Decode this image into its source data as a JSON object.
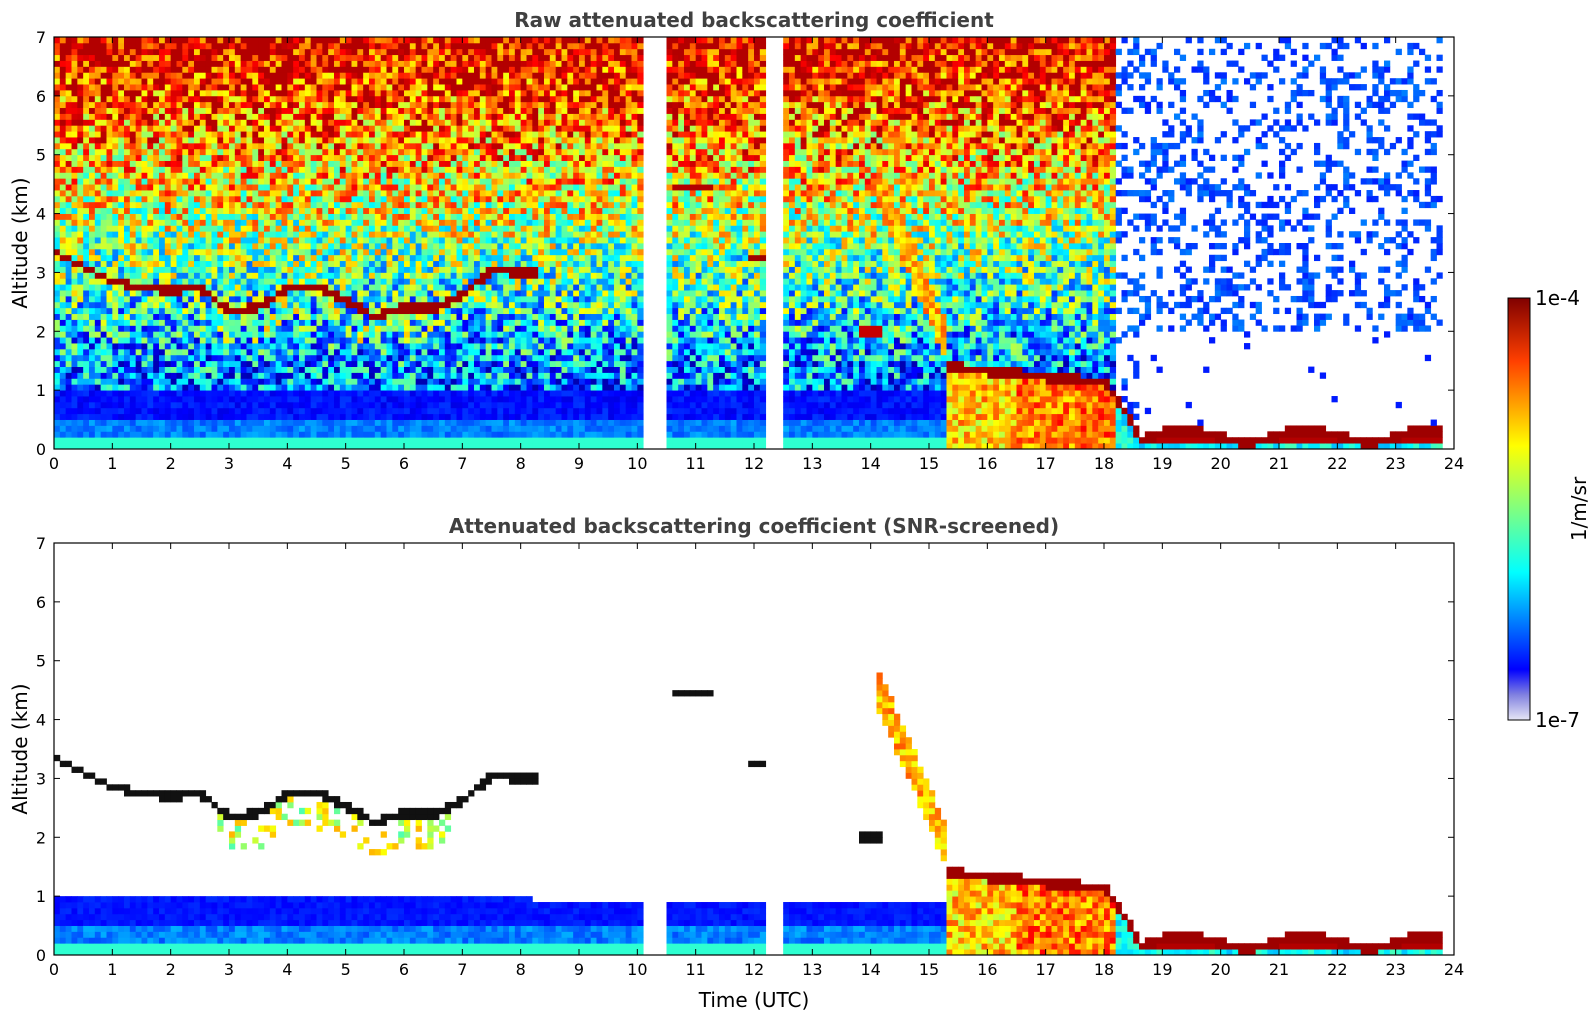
{
  "chart_data": [
    {
      "type": "heatmap",
      "title": "Raw attenuated backscattering coefficient",
      "xlabel": "",
      "ylabel": "Altitude (km)",
      "xlim": [
        0,
        24
      ],
      "ylim": [
        0,
        7
      ],
      "xticks": [
        0,
        1,
        2,
        3,
        4,
        5,
        6,
        7,
        8,
        9,
        10,
        11,
        12,
        13,
        14,
        15,
        16,
        17,
        18,
        19,
        20,
        21,
        22,
        23,
        24
      ],
      "yticks": [
        0,
        1,
        2,
        3,
        4,
        5,
        6,
        7
      ],
      "xtick_labels": [
        "0",
        "1",
        "2",
        "3",
        "4",
        "5",
        "6",
        "7",
        "8",
        "9",
        "10",
        "11",
        "12",
        "13",
        "14",
        "15",
        "16",
        "17",
        "18",
        "19",
        "20",
        "21",
        "22",
        "23",
        "24"
      ],
      "ytick_labels": [
        "0",
        "1",
        "2",
        "3",
        "4",
        "5",
        "6",
        "7"
      ],
      "data_gaps_utc": [
        [
          10.15,
          10.55
        ],
        [
          12.2,
          12.55
        ],
        [
          23.8,
          24
        ]
      ],
      "cloud_layer_altitude_km": {
        "x": [
          0,
          0.5,
          1,
          1.5,
          2,
          2.5,
          3,
          3.5,
          4,
          4.5,
          5,
          5.5,
          6,
          6.5,
          7,
          7.5,
          8,
          8.2
        ],
        "y": [
          3.35,
          3.1,
          2.85,
          2.75,
          2.7,
          2.75,
          2.35,
          2.4,
          2.75,
          2.75,
          2.55,
          2.25,
          2.4,
          2.4,
          2.6,
          3.05,
          3.0,
          3.0
        ]
      }
    },
    {
      "type": "heatmap",
      "title": "Attenuated backscattering coefficient (SNR-screened)",
      "xlabel": "Time (UTC)",
      "ylabel": "Altitude (km)",
      "xlim": [
        0,
        24
      ],
      "ylim": [
        0,
        7
      ],
      "xticks": [
        0,
        1,
        2,
        3,
        4,
        5,
        6,
        7,
        8,
        9,
        10,
        11,
        12,
        13,
        14,
        15,
        16,
        17,
        18,
        19,
        20,
        21,
        22,
        23,
        24
      ],
      "yticks": [
        0,
        1,
        2,
        3,
        4,
        5,
        6,
        7
      ],
      "xtick_labels": [
        "0",
        "1",
        "2",
        "3",
        "4",
        "5",
        "6",
        "7",
        "8",
        "9",
        "10",
        "11",
        "12",
        "13",
        "14",
        "15",
        "16",
        "17",
        "18",
        "19",
        "20",
        "21",
        "22",
        "23",
        "24"
      ],
      "ytick_labels": [
        "0",
        "1",
        "2",
        "3",
        "4",
        "5",
        "6",
        "7"
      ]
    }
  ],
  "colorbar": {
    "label": "1/m/sr",
    "min_label": "1e-7",
    "max_label": "1e-4",
    "scale": "log",
    "colormap": "jet"
  },
  "colors": {
    "title": "#404040",
    "jet_dark_blue": "#00008f",
    "jet_blue": "#0000ff",
    "jet_cyan": "#00ffff",
    "jet_yellow": "#ffff00",
    "jet_red": "#ff0000",
    "jet_dark_red": "#800000"
  }
}
